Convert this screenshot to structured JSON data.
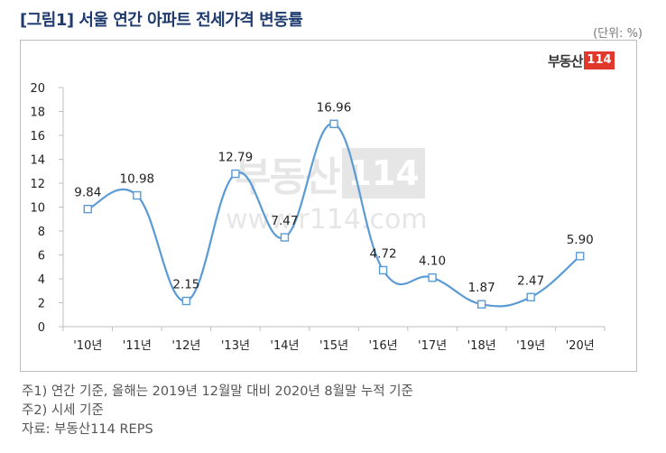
{
  "header": {
    "title": "[그림1] 서울 연간 아파트 전세가격 변동률",
    "unit": "(단위: %)"
  },
  "logo": {
    "text": "부동산",
    "number": "114"
  },
  "watermark": {
    "text": "부동산",
    "number": "114",
    "url": "www.r114.com"
  },
  "chart_data": {
    "type": "line",
    "title": "서울 연간 아파트 전세가격 변동률",
    "categories": [
      "'10년",
      "'11년",
      "'12년",
      "'13년",
      "'14년",
      "'15년",
      "'16년",
      "'17년",
      "'18년",
      "'19년",
      "'20년"
    ],
    "series": [
      {
        "values": [
          9.84,
          10.98,
          2.15,
          12.79,
          7.47,
          16.96,
          4.72,
          4.1,
          1.87,
          2.47,
          5.9
        ]
      }
    ],
    "data_labels": [
      "9.84",
      "10.98",
      "2.15",
      "12.79",
      "7.47",
      "16.96",
      "4.72",
      "4.10",
      "1.87",
      "2.47",
      "5.90"
    ],
    "ylim": [
      0,
      20
    ],
    "yticks": [
      "0",
      "2",
      "4",
      "6",
      "8",
      "10",
      "12",
      "14",
      "16",
      "18",
      "20"
    ],
    "grid": false,
    "line_color": "#5b9bd5",
    "marker": "hollow-square"
  },
  "notes": [
    "주1) 연간 기준, 올해는 2019년 12월말 대비 2020년 8월말 누적 기준",
    "주2) 시세 기준",
    "자료: 부동산114 REPS"
  ]
}
